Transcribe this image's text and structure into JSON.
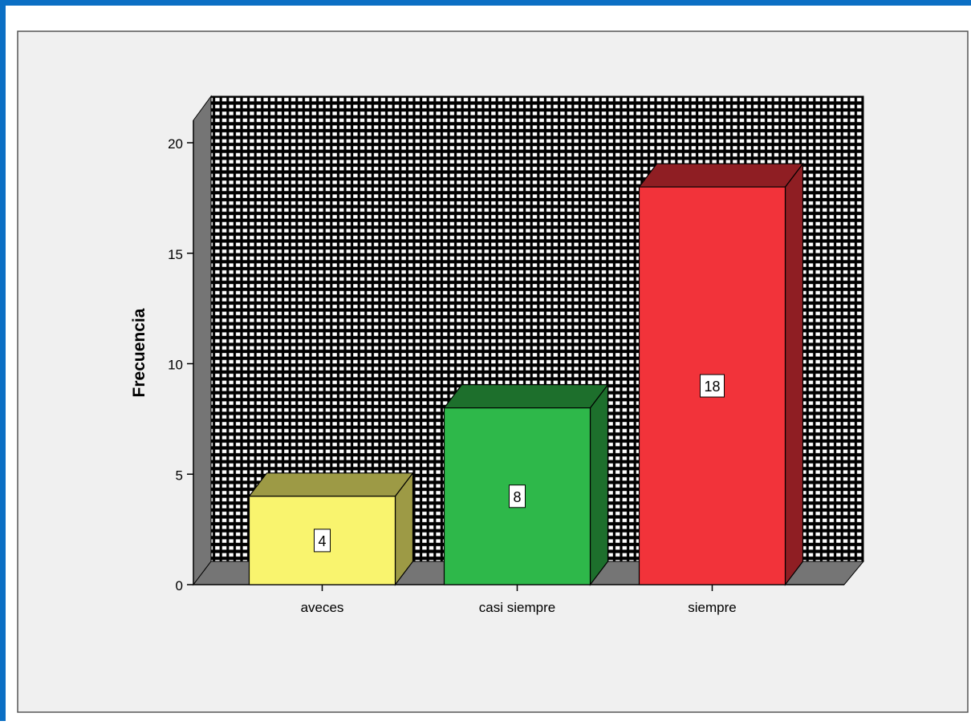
{
  "chart_data": {
    "type": "bar",
    "title": "",
    "xlabel": "",
    "ylabel": "Frecuencia",
    "categories": [
      "aveces",
      "casi siempre",
      "siempre"
    ],
    "values": [
      4,
      8,
      18
    ],
    "data_labels": [
      "4",
      "8",
      "18"
    ],
    "y_ticks": [
      "0",
      "5",
      "10",
      "15",
      "20"
    ],
    "ylim": [
      0,
      20
    ],
    "three_d": true,
    "grid": false,
    "legend": "none",
    "colors": {
      "bars": [
        {
          "front": "#f9f46e",
          "top": "#9d9a45",
          "side": "#9d9a45"
        },
        {
          "front": "#2eb84a",
          "top": "#1d6f2c",
          "side": "#1d6f2c"
        },
        {
          "front": "#f2333a",
          "top": "#8f1e23",
          "side": "#8f1e23"
        }
      ],
      "back_wall": "#000000",
      "wall_pattern": "#ffffff",
      "side_wall": "#757575",
      "floor": "#757575",
      "plot_background": "#f0f0f0",
      "frame_accent": "#0b6fc4"
    }
  }
}
